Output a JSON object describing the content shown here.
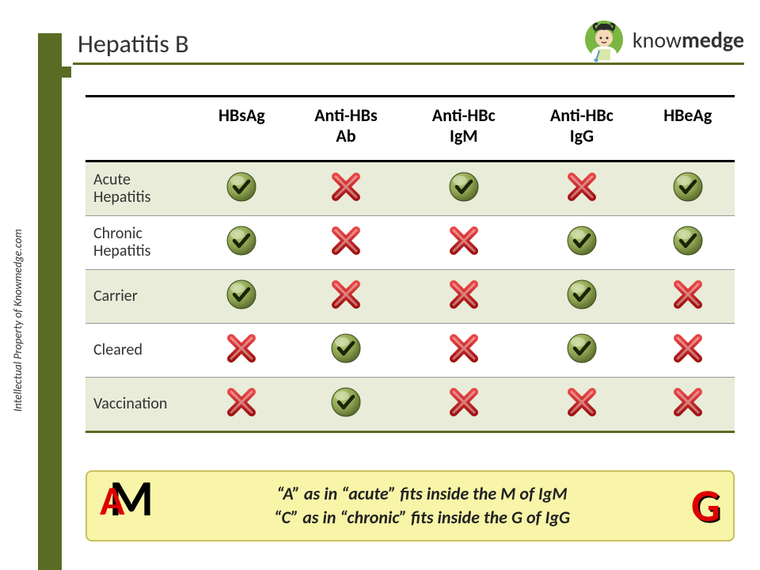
{
  "page": {
    "title": "Hepatitis B",
    "copyright": "Intellectual Property of Knowmedge.com",
    "brand_prefix": "know",
    "brand_suffix": "medge",
    "colors": {
      "olive": "#5a6b23",
      "row_shade": "#e8ecd9",
      "mnemonic_bg": "#f8f5a8",
      "mnemonic_border": "#c8c060",
      "red": "#d00000",
      "check_green": "#8fa552",
      "check_dark": "#2e3a1a",
      "cross_red": "#cc1f1f"
    }
  },
  "table": {
    "columns": [
      "HBsAg",
      "Anti-HBs Ab",
      "Anti-HBc IgM",
      "Anti-HBc IgG",
      "HBeAg"
    ],
    "rows": [
      {
        "label": "Acute Hepatitis",
        "shaded": true,
        "cells": [
          "check",
          "cross",
          "check",
          "cross",
          "check"
        ]
      },
      {
        "label": "Chronic Hepatitis",
        "shaded": false,
        "cells": [
          "check",
          "cross",
          "cross",
          "check",
          "check"
        ]
      },
      {
        "label": "Carrier",
        "shaded": true,
        "cells": [
          "check",
          "cross",
          "cross",
          "check",
          "cross"
        ]
      },
      {
        "label": "Cleared",
        "shaded": false,
        "cells": [
          "cross",
          "check",
          "cross",
          "check",
          "cross"
        ]
      },
      {
        "label": "Vaccination",
        "shaded": true,
        "cells": [
          "cross",
          "check",
          "cross",
          "cross",
          "cross"
        ]
      }
    ]
  },
  "mnemonic": {
    "letter_A": "A",
    "letter_M": "M",
    "letter_G": "G",
    "line1": "“A” as in “acute” fits inside the M of IgM",
    "line2": "“C” as in “chronic” fits inside the G of IgG"
  }
}
